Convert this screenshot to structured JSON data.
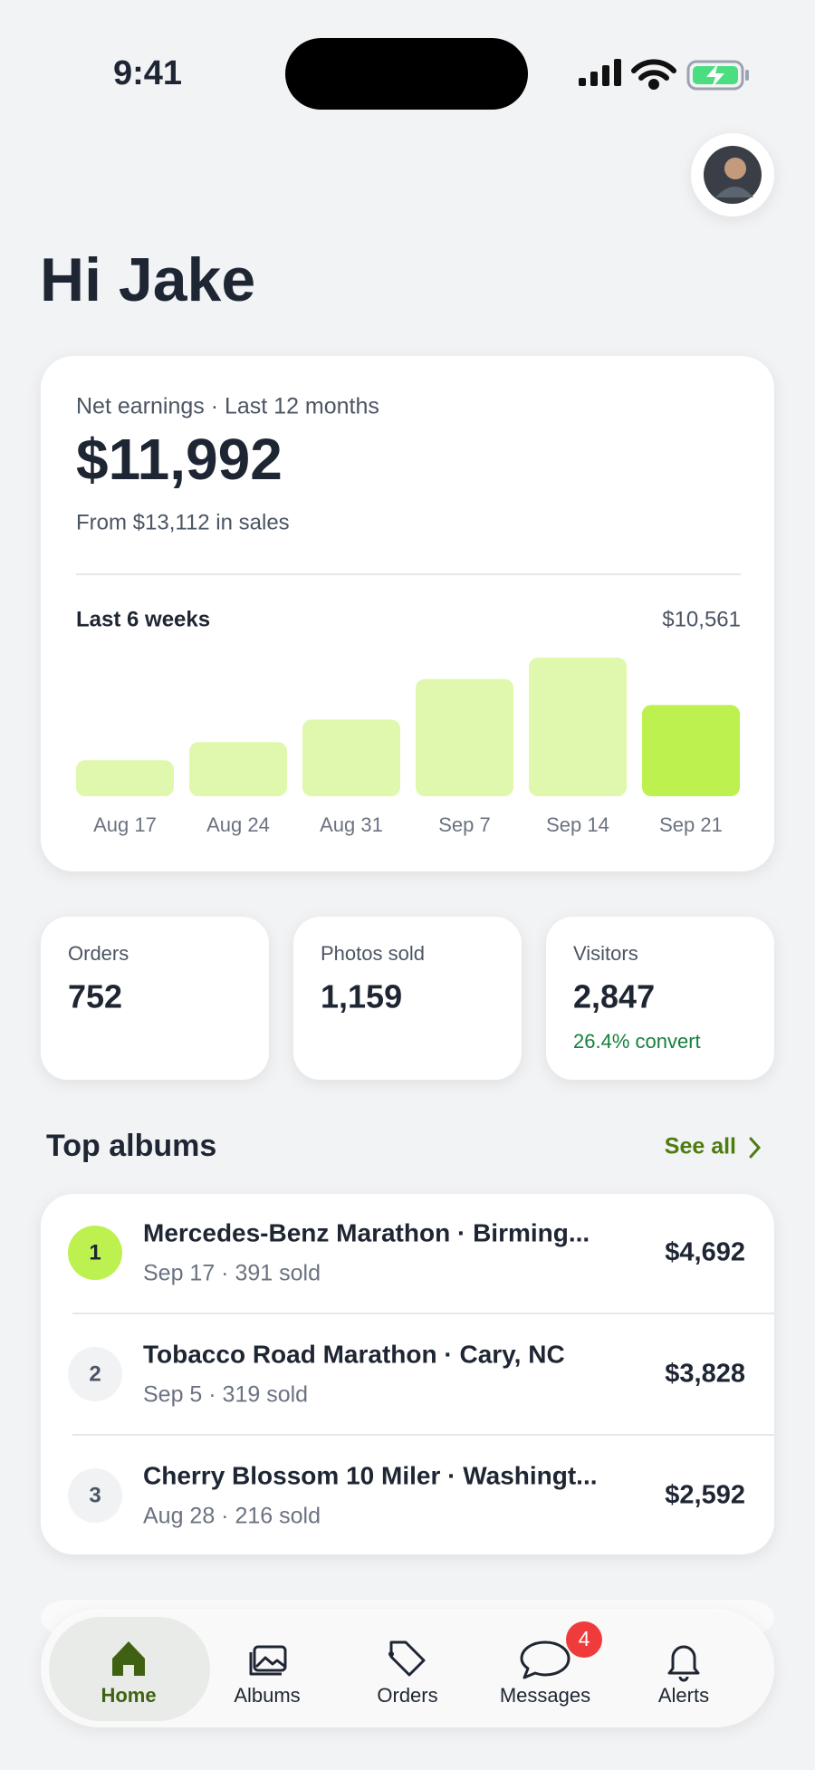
{
  "status_bar": {
    "time": "9:41"
  },
  "greeting": "Hi Jake",
  "earnings": {
    "label": "Net earnings · Last 12 months",
    "amount": "$11,992",
    "sales_note": "From $13,112 in sales",
    "chart": {
      "title": "Last 6 weeks",
      "total": "$10,561",
      "categories": [
        "Aug 17",
        "Aug 24",
        "Aug 31",
        "Sep 7",
        "Sep 14",
        "Sep 21"
      ],
      "values": [
        740,
        1112,
        1575,
        2409,
        2849,
        1876
      ],
      "colors": [
        "#dff8ae",
        "#dff8ae",
        "#dff8ae",
        "#dff8ae",
        "#dff8ae",
        "#bcf150"
      ]
    }
  },
  "stats": [
    {
      "label": "Orders",
      "value": "752"
    },
    {
      "label": "Photos sold",
      "value": "1,159"
    },
    {
      "label": "Visitors",
      "value": "2,847",
      "note": "26.4% convert"
    }
  ],
  "top_albums": {
    "title": "Top albums",
    "link": "See all",
    "rows": [
      {
        "rank": "1",
        "title": "Mercedes-Benz Marathon · Birming...",
        "subtitle": "Sep 17 · 391 sold",
        "amount": "$4,692"
      },
      {
        "rank": "2",
        "title": "Tobacco Road Marathon · Cary, NC",
        "subtitle": "Sep 5 · 319 sold",
        "amount": "$3,828"
      },
      {
        "rank": "3",
        "title": "Cherry Blossom 10 Miler · Washingt...",
        "subtitle": "Aug 28 · 216 sold",
        "amount": "$2,592"
      }
    ]
  },
  "nav": {
    "items": [
      {
        "label": "Home"
      },
      {
        "label": "Albums"
      },
      {
        "label": "Orders"
      },
      {
        "label": "Messages"
      },
      {
        "label": "Alerts"
      }
    ],
    "badge": "4"
  }
}
